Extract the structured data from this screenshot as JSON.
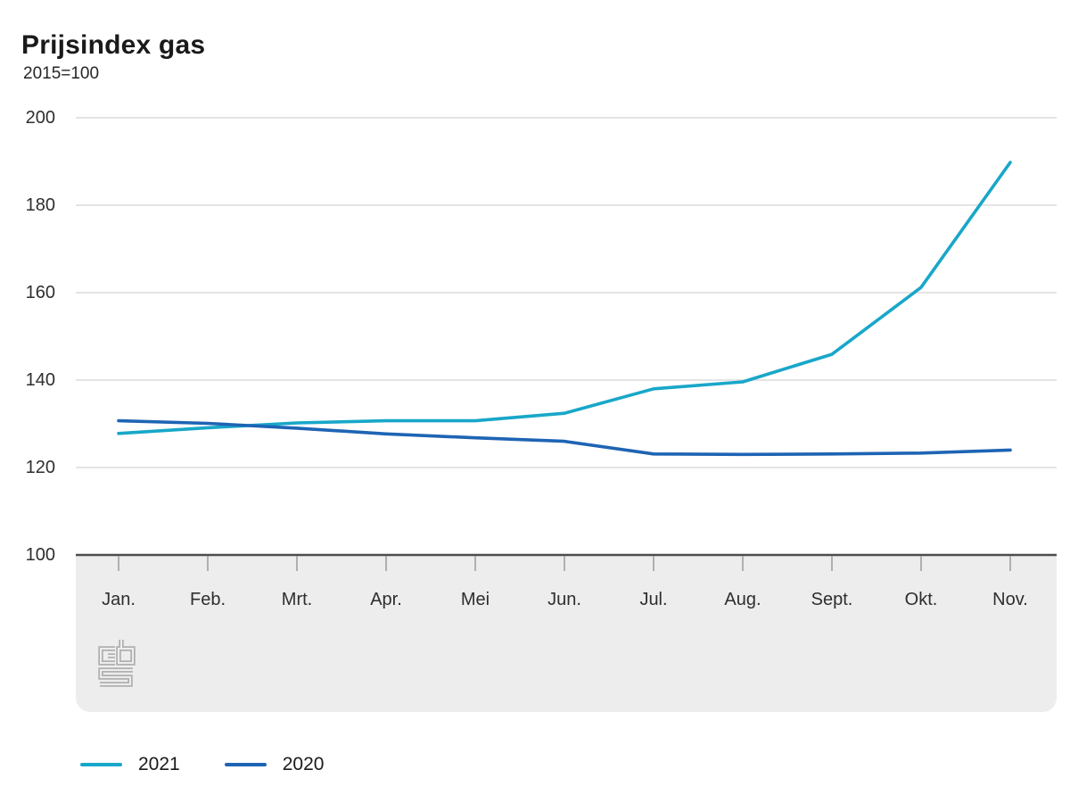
{
  "header": {
    "title": "Prijsindex gas",
    "subtitle": "2015=100"
  },
  "chart_data": {
    "type": "line",
    "title": "Prijsindex gas",
    "ylabel": "2015=100",
    "categories": [
      "Jan.",
      "Feb.",
      "Mrt.",
      "Apr.",
      "Mei",
      "Jun.",
      "Jul.",
      "Aug.",
      "Sept.",
      "Okt.",
      "Nov."
    ],
    "series": [
      {
        "name": "2021",
        "color": "#18a7c9",
        "values": [
          127.8,
          129.1,
          130.2,
          130.7,
          130.7,
          132.4,
          138.0,
          139.6,
          145.9,
          161.2,
          189.8
        ]
      },
      {
        "name": "2020",
        "color": "#1e64b4",
        "values": [
          130.7,
          130.1,
          129.0,
          127.7,
          126.8,
          126.0,
          123.1,
          123.0,
          123.1,
          123.3,
          124.0
        ]
      }
    ],
    "ylim": [
      100,
      200
    ],
    "yticks": [
      100,
      120,
      140,
      160,
      180,
      200
    ],
    "grid": true,
    "legend_position": "bottom"
  },
  "logo": {
    "name": "CBS"
  },
  "colors": {
    "grid": "#d4d4d4",
    "axis": "#4d4d4d",
    "tick": "#b0b0b0",
    "band": "#ededed",
    "logo": "#b0b0b0"
  }
}
